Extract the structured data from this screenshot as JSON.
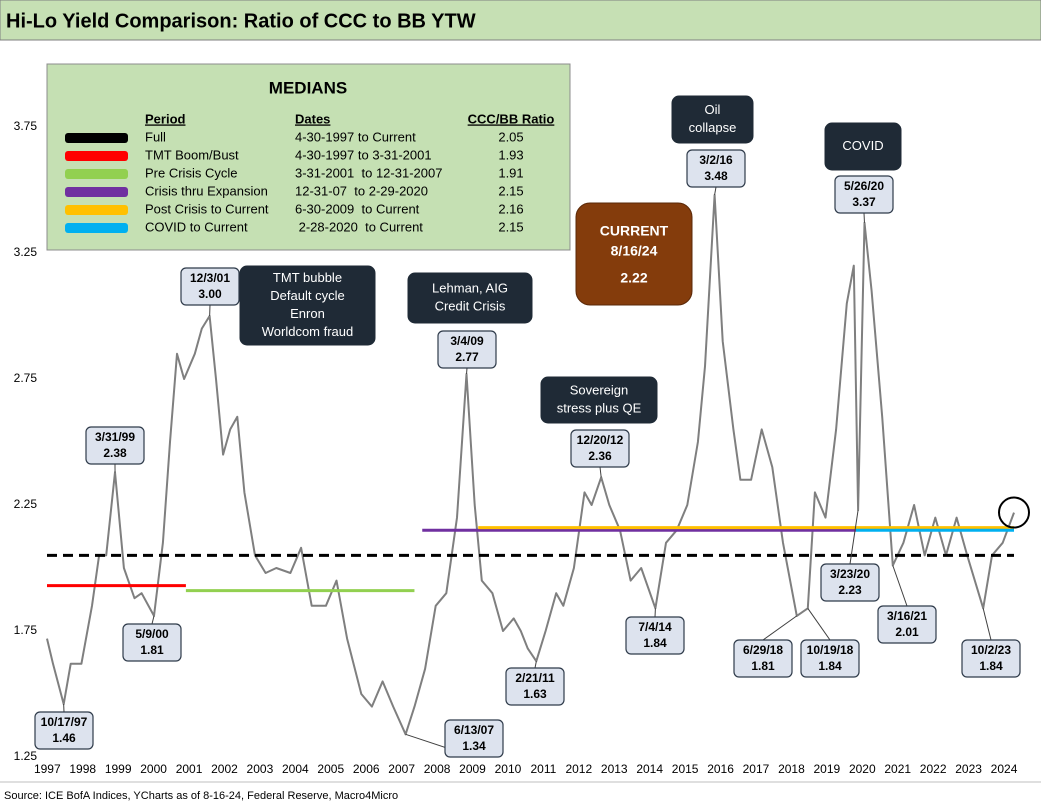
{
  "chart_data": {
    "type": "line",
    "title": "Hi-Lo Yield Comparison: Ratio of CCC to BB YTW",
    "source": "Source: ICE BofA Indices, YCharts as of 8-16-24, Federal Reserve, Macro4Micro",
    "color": "#7f7f7f",
    "xlim": [
      1997.33,
      2024.62
    ],
    "xticks": [
      1997,
      1998,
      1999,
      2000,
      2001,
      2002,
      2003,
      2004,
      2005,
      2006,
      2007,
      2008,
      2009,
      2010,
      2011,
      2012,
      2013,
      2014,
      2015,
      2016,
      2017,
      2018,
      2019,
      2020,
      2021,
      2022,
      2023,
      2024
    ],
    "ylim": [
      1.25,
      4.0
    ],
    "yticks": [
      1.25,
      1.75,
      2.25,
      2.75,
      3.25,
      3.75
    ],
    "x": [
      1997.33,
      1997.5,
      1997.8,
      1998.0,
      1998.3,
      1998.6,
      1998.8,
      1999.0,
      1999.25,
      1999.5,
      1999.8,
      2000.0,
      2000.35,
      2000.6,
      2000.8,
      2001.0,
      2001.2,
      2001.5,
      2001.7,
      2001.92,
      2002.1,
      2002.3,
      2002.5,
      2002.7,
      2002.9,
      2003.2,
      2003.5,
      2003.8,
      2004.2,
      2004.5,
      2004.8,
      2005.2,
      2005.5,
      2005.8,
      2006.2,
      2006.5,
      2006.8,
      2007.1,
      2007.45,
      2007.7,
      2008.0,
      2008.3,
      2008.6,
      2008.9,
      2009.17,
      2009.4,
      2009.6,
      2009.9,
      2010.2,
      2010.5,
      2010.7,
      2010.9,
      2011.14,
      2011.4,
      2011.7,
      2011.9,
      2012.2,
      2012.5,
      2012.7,
      2012.97,
      2013.2,
      2013.5,
      2013.8,
      2014.1,
      2014.5,
      2014.8,
      2015.1,
      2015.4,
      2015.7,
      2015.9,
      2016.17,
      2016.4,
      2016.7,
      2016.9,
      2017.2,
      2017.5,
      2017.8,
      2018.1,
      2018.49,
      2018.8,
      2019.0,
      2019.3,
      2019.6,
      2019.9,
      2020.1,
      2020.22,
      2020.4,
      2020.6,
      2020.9,
      2021.2,
      2021.5,
      2021.8,
      2022.1,
      2022.4,
      2022.7,
      2023.0,
      2023.3,
      2023.75,
      2024.0,
      2024.3,
      2024.62
    ],
    "values": [
      1.72,
      1.62,
      1.46,
      1.62,
      1.62,
      1.85,
      2.05,
      2.05,
      2.38,
      2.0,
      1.88,
      1.9,
      1.81,
      2.1,
      2.5,
      2.85,
      2.75,
      2.85,
      2.95,
      3.0,
      2.75,
      2.45,
      2.55,
      2.6,
      2.3,
      2.05,
      1.98,
      2.0,
      1.98,
      2.08,
      1.85,
      1.85,
      1.95,
      1.72,
      1.5,
      1.45,
      1.55,
      1.45,
      1.34,
      1.45,
      1.6,
      1.85,
      1.9,
      2.2,
      2.77,
      2.25,
      1.95,
      1.9,
      1.75,
      1.8,
      1.75,
      1.68,
      1.63,
      1.75,
      1.9,
      1.85,
      2.0,
      2.3,
      2.25,
      2.36,
      2.25,
      2.15,
      1.95,
      2.0,
      1.84,
      2.1,
      2.15,
      2.25,
      2.5,
      2.8,
      3.48,
      2.9,
      2.55,
      2.35,
      2.35,
      2.55,
      2.4,
      2.1,
      1.81,
      1.84,
      2.3,
      2.2,
      2.55,
      3.05,
      3.2,
      2.23,
      3.37,
      3.1,
      2.6,
      2.01,
      2.1,
      2.25,
      2.05,
      2.2,
      2.05,
      2.2,
      2.05,
      1.84,
      2.05,
      2.1,
      2.22
    ],
    "medians": {
      "title": "MEDIANS",
      "headers": [
        "Period",
        "Dates",
        "CCC/BB Ratio"
      ],
      "rows": [
        {
          "name": "Full",
          "dates": "4-30-1997 to Current",
          "value": 2.05,
          "color": "#000000",
          "span": [
            1997.33,
            2024.62
          ],
          "dashed": true
        },
        {
          "name": "TMT Boom/Bust",
          "dates": "4-30-1997 to 3-31-2001",
          "value": 1.93,
          "color": "#ff0000",
          "span": [
            1997.33,
            2001.25
          ]
        },
        {
          "name": "Pre Crisis Cycle",
          "dates": "3-31-2001  to 12-31-2007",
          "value": 1.91,
          "color": "#92d050",
          "span": [
            2001.25,
            2007.7
          ]
        },
        {
          "name": "Crisis thru Expansion",
          "dates": "12-31-07  to 2-29-2020",
          "value": 2.15,
          "color": "#7030a0",
          "span": [
            2007.92,
            2020.16
          ]
        },
        {
          "name": "Post Crisis to Current",
          "dates": "6-30-2009  to Current",
          "value": 2.16,
          "color": "#ffc000",
          "span": [
            2009.5,
            2024.62
          ]
        },
        {
          "name": "COVID to Current",
          "dates": " 2-28-2020  to Current",
          "value": 2.15,
          "color": "#00b0f0",
          "span": [
            2020.16,
            2024.62
          ]
        }
      ]
    },
    "callouts": [
      {
        "date": "10/17/97",
        "x": 1997.8,
        "value": 1.46
      },
      {
        "date": "3/31/99",
        "x": 1999.25,
        "value": 2.38
      },
      {
        "date": "5/9/00",
        "x": 2000.35,
        "value": 1.81
      },
      {
        "date": "12/3/01",
        "x": 2001.92,
        "value": 3,
        "value_label": "3.00"
      },
      {
        "date": "6/13/07",
        "x": 2007.45,
        "value": 1.34
      },
      {
        "date": "3/4/09",
        "x": 2009.17,
        "value": 2.77
      },
      {
        "date": "2/21/11",
        "x": 2011.14,
        "value": 1.63
      },
      {
        "date": "12/20/12",
        "x": 2012.97,
        "value": 2.36
      },
      {
        "date": "7/4/14",
        "x": 2014.5,
        "value": 1.84
      },
      {
        "date": "3/2/16",
        "x": 2016.17,
        "value": 3.48
      },
      {
        "date": "6/29/18",
        "x": 2018.49,
        "value": 1.81
      },
      {
        "date": "10/19/18",
        "x": 2018.8,
        "value": 1.84
      },
      {
        "date": "5/26/20",
        "x": 2020.4,
        "value": 3.37
      },
      {
        "date": "3/23/20",
        "x": 2020.22,
        "value": 2.23
      },
      {
        "date": "3/16/21",
        "x": 2021.2,
        "value": 2.01
      },
      {
        "date": "10/2/23",
        "x": 2023.75,
        "value": 1.84
      }
    ],
    "notes": [
      {
        "lines": [
          "TMT bubble",
          "Default cycle",
          "Enron",
          "Worldcom fraud"
        ]
      },
      {
        "lines": [
          "Lehman, AIG",
          "Credit Crisis"
        ]
      },
      {
        "lines": [
          "Sovereign",
          "stress plus QE"
        ]
      },
      {
        "lines": [
          "Oil",
          "collapse"
        ]
      },
      {
        "lines": [
          "COVID"
        ]
      }
    ],
    "current": {
      "label": "CURRENT",
      "date": "8/16/24",
      "value": 2.22
    }
  }
}
